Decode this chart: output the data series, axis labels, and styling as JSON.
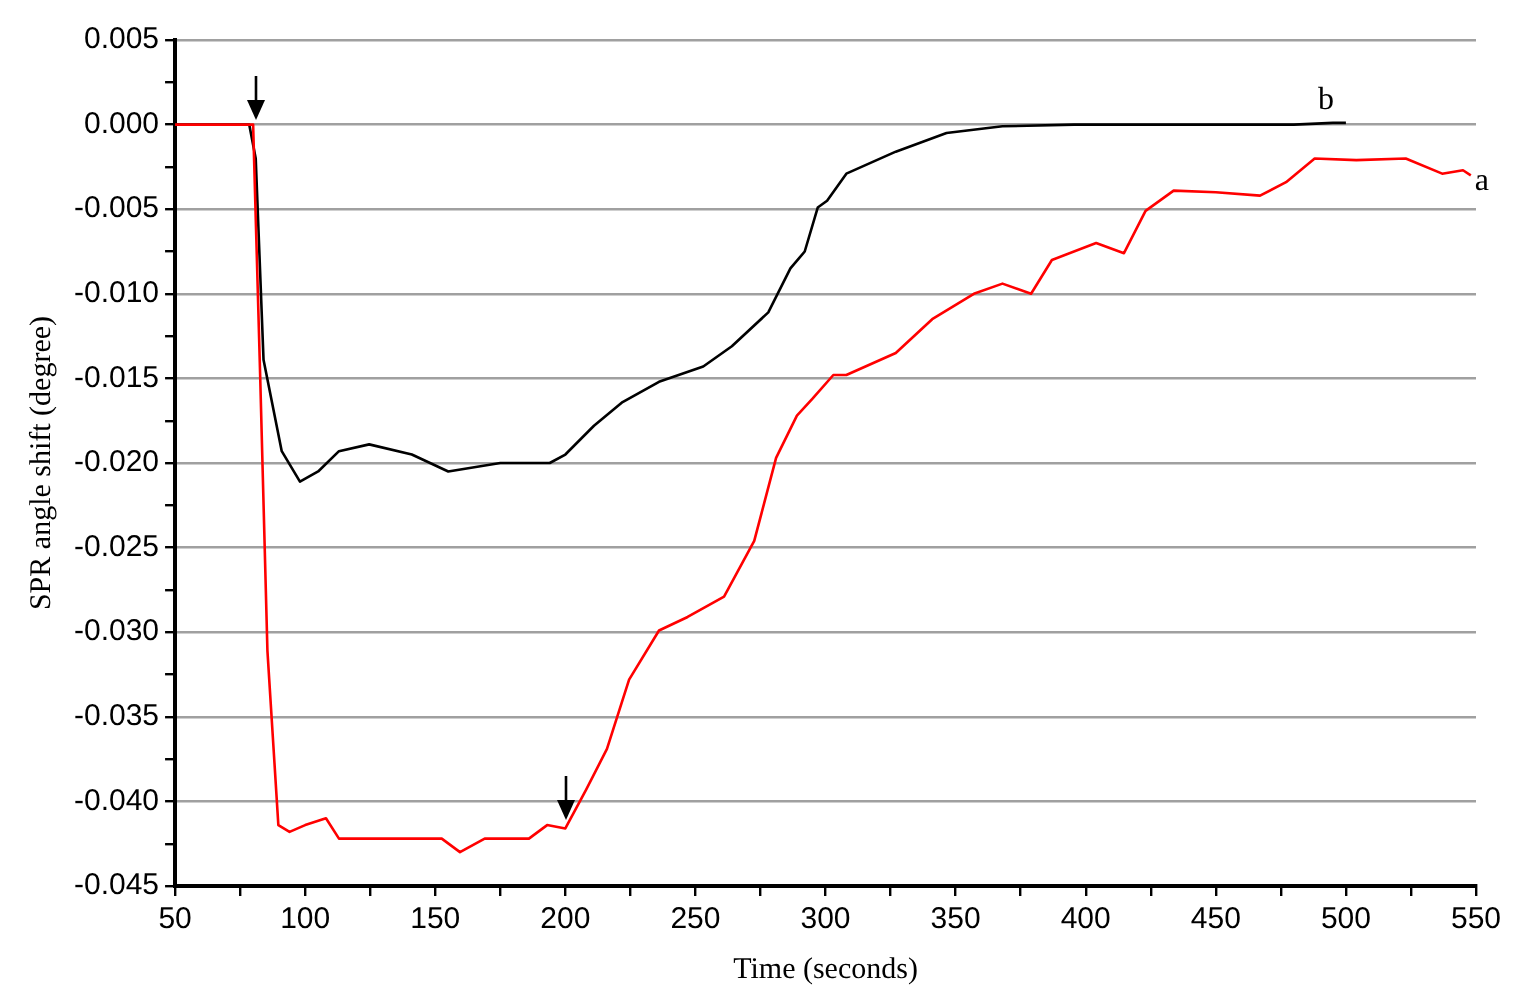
{
  "chart_data": {
    "type": "line",
    "xlabel": "Time (seconds)",
    "ylabel": "SPR angle shift (degree)",
    "xlim": [
      50,
      550
    ],
    "ylim": [
      -0.045,
      0.005
    ],
    "xticks": [
      50,
      {
        "value": 75,
        "label": null
      },
      100,
      {
        "value": 125,
        "label": null
      },
      150,
      {
        "value": 175,
        "label": null
      },
      200,
      {
        "value": 225,
        "label": null
      },
      250,
      {
        "value": 275,
        "label": null
      },
      300,
      {
        "value": 325,
        "label": null
      },
      350,
      {
        "value": 375,
        "label": null
      },
      400,
      {
        "value": 425,
        "label": null
      },
      450,
      {
        "value": 475,
        "label": null
      },
      500,
      {
        "value": 525,
        "label": null
      },
      550
    ],
    "yticks": [
      {
        "value": 0.005,
        "label": "0.005"
      },
      {
        "value": 0.0025,
        "label": null
      },
      {
        "value": 0,
        "label": "0.000"
      },
      {
        "value": -0.0025,
        "label": null
      },
      {
        "value": -0.005,
        "label": "-0.005"
      },
      {
        "value": -0.0075,
        "label": null
      },
      {
        "value": -0.01,
        "label": "-0.010"
      },
      {
        "value": -0.0125,
        "label": null
      },
      {
        "value": -0.015,
        "label": "-0.015"
      },
      {
        "value": -0.0175,
        "label": null
      },
      {
        "value": -0.02,
        "label": "-0.020"
      },
      {
        "value": -0.0225,
        "label": null
      },
      {
        "value": -0.025,
        "label": "-0.025"
      },
      {
        "value": -0.0275,
        "label": null
      },
      {
        "value": -0.03,
        "label": "-0.030"
      },
      {
        "value": -0.0325,
        "label": null
      },
      {
        "value": -0.035,
        "label": "-0.035"
      },
      {
        "value": -0.0375,
        "label": null
      },
      {
        "value": -0.04,
        "label": "-0.040"
      },
      {
        "value": -0.0425,
        "label": null
      },
      {
        "value": -0.045,
        "label": "-0.045"
      }
    ],
    "grid": "y",
    "legend": false,
    "marker": "none",
    "line_style": "solid",
    "series": [
      {
        "name": "a",
        "color": "#ff0000",
        "x": [
          50,
          60,
          70,
          78,
          80,
          82.7,
          85.5,
          89.7,
          94,
          100,
          108,
          113,
          125,
          141,
          152.5,
          159.5,
          169,
          186,
          193,
          200,
          208,
          216,
          224.5,
          236,
          247,
          261,
          272.6,
          281,
          289,
          295,
          303,
          308,
          327,
          341,
          357,
          368,
          379,
          387,
          404,
          414.7,
          423,
          433.8,
          450,
          467,
          477,
          488,
          504,
          523,
          537,
          545,
          548
        ],
        "values": [
          0,
          0,
          0,
          0,
          0,
          -0.0148,
          -0.0311,
          -0.0414,
          -0.0418,
          -0.0414,
          -0.041,
          -0.0422,
          -0.0422,
          -0.0422,
          -0.0422,
          -0.043,
          -0.0422,
          -0.0422,
          -0.0414,
          -0.0416,
          -0.0393,
          -0.0369,
          -0.0328,
          -0.0299,
          -0.0291,
          -0.0279,
          -0.0246,
          -0.0197,
          -0.0172,
          -0.0162,
          -0.0148,
          -0.0148,
          -0.0135,
          -0.0115,
          -0.01,
          -0.0094,
          -0.01,
          -0.008,
          -0.007,
          -0.0076,
          -0.0051,
          -0.0039,
          -0.004,
          -0.0042,
          -0.0034,
          -0.002,
          -0.0021,
          -0.002,
          -0.0029,
          -0.0027,
          -0.003
        ]
      },
      {
        "name": "b",
        "color": "#000000",
        "x": [
          50,
          60,
          70,
          78.5,
          81,
          84,
          91,
          98,
          105,
          113,
          124.6,
          141,
          155,
          175,
          194,
          200,
          211,
          222,
          236,
          253,
          264,
          278,
          286.5,
          292,
          297,
          300.6,
          308,
          327,
          346.5,
          368,
          395.6,
          423,
          450,
          480,
          495,
          500
        ],
        "values": [
          0,
          0,
          0,
          0,
          -0.002,
          -0.0139,
          -0.0193,
          -0.0211,
          -0.0205,
          -0.0193,
          -0.0189,
          -0.0195,
          -0.0205,
          -0.02,
          -0.02,
          -0.0195,
          -0.0178,
          -0.0164,
          -0.0152,
          -0.0143,
          -0.0131,
          -0.0111,
          -0.0085,
          -0.0075,
          -0.0049,
          -0.0045,
          -0.0029,
          -0.0016,
          -0.0005,
          -0.0001,
          0,
          0,
          0,
          0,
          0.0001,
          0.0001
        ]
      }
    ]
  }
}
